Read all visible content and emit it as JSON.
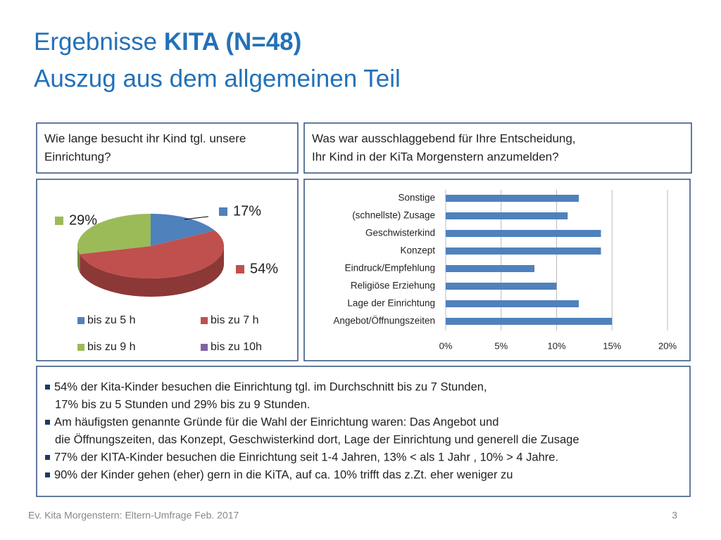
{
  "title": {
    "line1_normal": "Ergebnisse",
    "line1_bold": "KITA (N=48)",
    "line2": "Auszug aus dem allgemeinen Teil"
  },
  "questions": [
    [
      "Wie lange besucht ihr Kind tgl. unsere",
      "Einrichtung?"
    ],
    [
      "Was war ausschlaggebend für Ihre Entscheidung,",
      "Ihr Kind in der KiTa Morgenstern anzumelden?"
    ]
  ],
  "chart_data": [
    {
      "type": "pie",
      "categories": [
        "bis zu 5 h",
        "bis zu 7 h",
        "bis zu 9 h",
        "bis zu 10h"
      ],
      "values": [
        17,
        54,
        29,
        0
      ],
      "value_labels": [
        "17%",
        "54%",
        "29%",
        null
      ],
      "colors": [
        "#4f81bd",
        "#c0504d",
        "#9bbb59",
        "#8064a2"
      ],
      "legend": "bottom"
    },
    {
      "type": "bar",
      "orientation": "horizontal",
      "categories": [
        "Sonstige",
        "(schnellste) Zusage",
        "Geschwisterkind",
        "Konzept",
        "Eindruck/Empfehlung",
        "Religiöse Erziehung",
        "Lage der Einrichtung",
        "Angebot/Öffnungszeiten"
      ],
      "values": [
        12,
        11,
        14,
        14,
        8,
        10,
        12,
        15
      ],
      "color": "#4f81bd",
      "xlim": [
        0,
        20
      ],
      "xticks": [
        {
          "value": 0,
          "label": "0%"
        },
        {
          "value": 5,
          "label": "5%"
        },
        {
          "value": 10,
          "label": "10%"
        },
        {
          "value": 15,
          "label": "15%"
        },
        {
          "value": 20,
          "label": "20%"
        }
      ],
      "grid": true
    }
  ],
  "bullets": [
    [
      "54% der Kita-Kinder besuchen die Einrichtung tgl. im Durchschnitt bis zu 7 Stunden,",
      "17% bis zu 5 Stunden und 29% bis zu 9 Stunden."
    ],
    [
      "Am häufigsten genannte Gründe für die Wahl der Einrichtung waren: Das Angebot und",
      "die Öffnungszeiten, das Konzept, Geschwisterkind dort, Lage der Einrichtung und generell die Zusage"
    ],
    [
      "77% der KITA-Kinder besuchen die Einrichtung seit 1-4 Jahren, 13% < als 1 Jahr , 10%  > 4 Jahre."
    ],
    [
      "90% der Kinder gehen (eher) gern in die KiTA, auf ca. 10% trifft das z.Zt. eher weniger zu"
    ]
  ],
  "footer": {
    "left": "Ev. Kita Morgenstern: Eltern-Umfrage Feb. 2017",
    "page": "3"
  }
}
